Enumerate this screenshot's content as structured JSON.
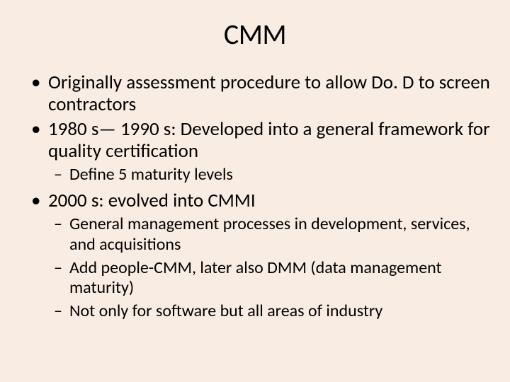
{
  "slide": {
    "background_color": "#f9ece2",
    "text_color": "#000000",
    "title": "CMM",
    "title_fontsize": 40,
    "font_family": "Calibri",
    "bullets": [
      {
        "text": "Originally assessment procedure to allow Do. D to screen contractors",
        "fontsize": 27,
        "children": []
      },
      {
        "text": "1980 s— 1990 s: Developed into a general framework for quality certification",
        "fontsize": 27,
        "children": [
          {
            "text": "Define 5 maturity levels",
            "fontsize": 24
          }
        ]
      },
      {
        "text": "2000 s: evolved into CMMI",
        "fontsize": 27,
        "children": [
          {
            "text": "General management processes in development, services, and acquisitions",
            "fontsize": 24
          },
          {
            "text": "Add people-CMM, later also DMM (data management maturity)",
            "fontsize": 24
          },
          {
            "text": "Not only for software but all areas of industry",
            "fontsize": 24
          }
        ]
      }
    ]
  }
}
